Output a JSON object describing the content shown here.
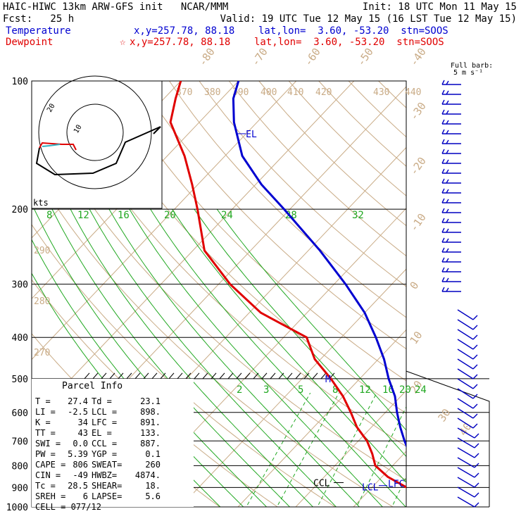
{
  "header": {
    "title": "HAIC-HIWC 13km ARW-GFS init   NCAR/MMM",
    "fcst": "Fcst:   25 h",
    "init": "Init: 18 UTC Mon 11 May 15",
    "valid": "Valid: 19 UTC Tue 12 May 15 (16 LST Tue 12 May 15)",
    "temp_label": "Temperature",
    "temp_info": "x,y=257.78, 88.18    lat,lon=  3.60, -53.20  stn=SOOS",
    "dew_label": "Dewpoint",
    "dew_info": "x,y=257.78, 88.18    lat,lon=  3.60, -53.20  stn=SOOS",
    "barb_title_1": "Full barb:",
    "barb_title_2": "5 m s⁻¹"
  },
  "colors": {
    "temperature": "#0000d0",
    "dewpoint": "#e00000",
    "dry_adiabat": "#c9ab86",
    "moist_adiabat": "#21a821",
    "isobar": "#000000",
    "barb": "#0000c0",
    "hodo_low": "#30b0c0"
  },
  "chart_data": {
    "type": "line",
    "title": "HAIC-HIWC 13km ARW-GFS init",
    "y_axis": {
      "scale": "log",
      "ylim": [
        1000,
        100
      ],
      "pressure_labels": [
        "100",
        "200",
        "300",
        "400",
        "500",
        "600",
        "700",
        "800",
        "900",
        "1000"
      ]
    },
    "isotherm_labels": [
      "-80",
      "-70",
      "-60",
      "-50",
      "-40",
      "-30",
      "-20",
      "-10",
      "0",
      "10",
      "20",
      "30",
      "40"
    ],
    "theta_labels": [
      "370",
      "380",
      "390",
      "400",
      "410",
      "420",
      "430",
      "440",
      "290",
      "280",
      "270"
    ],
    "mixing_ratio_labels_upper": [
      "8",
      "12",
      "16",
      "20",
      "24",
      "28",
      "32"
    ],
    "mixing_ratio_labels_lower": [
      "2",
      "3",
      "5",
      "8",
      "12",
      "16",
      "20",
      "24"
    ],
    "series": [
      {
        "name": "Temperature",
        "color": "#0000d0",
        "points": [
          [
            1000,
            26
          ],
          [
            975,
            25
          ],
          [
            950,
            22.5
          ],
          [
            925,
            21
          ],
          [
            900,
            20
          ],
          [
            850,
            17
          ],
          [
            800,
            14
          ],
          [
            750,
            11
          ],
          [
            700,
            8
          ],
          [
            650,
            5
          ],
          [
            600,
            2
          ],
          [
            550,
            -1
          ],
          [
            500,
            -5
          ],
          [
            450,
            -9
          ],
          [
            400,
            -14
          ],
          [
            350,
            -20
          ],
          [
            300,
            -28
          ],
          [
            250,
            -38
          ],
          [
            200,
            -51
          ],
          [
            175,
            -59
          ],
          [
            150,
            -67
          ],
          [
            125,
            -74
          ],
          [
            110,
            -78
          ],
          [
            100,
            -80
          ]
        ]
      },
      {
        "name": "Dewpoint",
        "color": "#e00000",
        "points": [
          [
            1000,
            23
          ],
          [
            975,
            23
          ],
          [
            950,
            21
          ],
          [
            925,
            19
          ],
          [
            900,
            16
          ],
          [
            850,
            11
          ],
          [
            800,
            7
          ],
          [
            750,
            4.5
          ],
          [
            700,
            1.5
          ],
          [
            650,
            -2.5
          ],
          [
            600,
            -6
          ],
          [
            550,
            -10
          ],
          [
            500,
            -15
          ],
          [
            450,
            -21
          ],
          [
            400,
            -26
          ],
          [
            350,
            -38
          ],
          [
            300,
            -48
          ],
          [
            250,
            -58
          ],
          [
            200,
            -66
          ],
          [
            175,
            -71
          ],
          [
            150,
            -77
          ],
          [
            125,
            -85
          ],
          [
            110,
            -88
          ],
          [
            100,
            -90
          ]
        ]
      }
    ],
    "markers": [
      {
        "label": "EL",
        "pressure": 133
      },
      {
        "label": "CCL",
        "pressure": 887
      },
      {
        "label": "LCL",
        "pressure": 898
      },
      {
        "label": "LFC",
        "pressure": 891
      },
      {
        "label": "M",
        "pressure": 500
      }
    ],
    "hodograph": {
      "rings": [
        "10",
        "20"
      ],
      "unit": "kts"
    },
    "wind_barbs_label": "Full barb: 5 m s-1"
  },
  "parcel_info": {
    "title": "Parcel Info",
    "rows": [
      [
        "T  =",
        "27.4",
        "Td =",
        "23.1"
      ],
      [
        "LI =",
        "-2.5",
        "LCL =",
        "898."
      ],
      [
        "K  =",
        "34",
        "LFC =",
        "891."
      ],
      [
        "TT =",
        "43",
        "EL  =",
        "133."
      ],
      [
        "SWI =",
        "0.0",
        "CCL =",
        "887."
      ],
      [
        "PW  =",
        "5.39",
        "YGP =",
        "0.1"
      ],
      [
        "CAPE =",
        "806",
        "SWEAT=",
        "260"
      ],
      [
        "CIN  =",
        "-49",
        "HWBZ=",
        "4874."
      ],
      [
        "Tc =",
        "28.5",
        "SHEAR=",
        "18."
      ],
      [
        "SREH =",
        "6",
        "LAPSE=",
        "5.6"
      ]
    ],
    "cell": "CELL = 077/12"
  }
}
